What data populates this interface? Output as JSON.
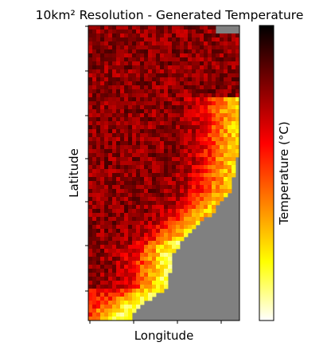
{
  "chart_data": {
    "type": "heatmap",
    "title": "10km² Resolution - Generated Temperature",
    "xlabel": "Longitude",
    "ylabel": "Latitude",
    "colorbar_label": "Temperature (°C)",
    "colormap": "hot_r",
    "colormap_stops": [
      "#ffffff",
      "#ffff00",
      "#ff8000",
      "#ff0000",
      "#7f0000",
      "#000000"
    ],
    "nodata_color": "#808080",
    "x_tick_labels": [
      "",
      "",
      "",
      ""
    ],
    "y_tick_labels": [
      "",
      "",
      "",
      "",
      "",
      "",
      ""
    ],
    "colorbar_tick_labels": [],
    "grid": false,
    "values_note": ""
  }
}
